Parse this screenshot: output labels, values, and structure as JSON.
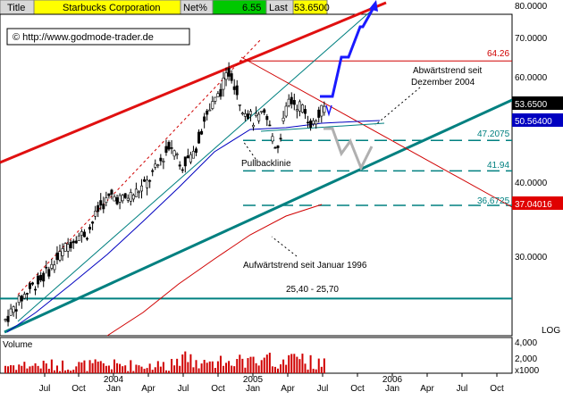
{
  "header": {
    "title_label": "Title",
    "company": "Starbucks Corporation",
    "net_label": "Net%",
    "net_value": "6.55",
    "last_label": "Last",
    "last_value": "53.6500"
  },
  "watermark": "© http://www.godmode-trader.de",
  "annotations": {
    "downtrend": [
      "Abwärtstrend seit",
      "Dezember 2004"
    ],
    "pullback": "Pullbacklinie",
    "uptrend": "Aufwärtstrend seit Januar 1996",
    "range": "25,40 - 25,70",
    "level_6426": "64.26",
    "level_47": "47.2075",
    "level_4194": "41.94",
    "level_3667": "36.6725"
  },
  "right_axis": {
    "ticks": [
      "80.0000",
      "70.0000",
      "60.0000",
      "40.0000",
      "30.0000"
    ],
    "boxes": {
      "last": "53.6500",
      "ma_blue": "50.56400",
      "ma_red": "37.04016"
    },
    "scale_label": "LOG"
  },
  "volume": {
    "label": "Volume",
    "ticks": [
      "4,000",
      "2,000",
      "x1000"
    ]
  },
  "x_axis": {
    "labels": [
      "Jul",
      "Oct",
      "Jan",
      "Apr",
      "Jul",
      "Oct",
      "Jan",
      "Apr",
      "Jul",
      "Oct",
      "Jan",
      "Apr",
      "Jul",
      "Oct"
    ],
    "years": [
      "2004",
      "2005",
      "2006"
    ]
  },
  "colors": {
    "trend_red": "#e01010",
    "trend_green": "#008080",
    "ma_blue": "#0000c0",
    "ma_red": "#d00000",
    "forecast_blue": "#1a1aff",
    "forecast_grey": "#b0b0b0",
    "header_green": "#00c800",
    "header_yellow": "#ffff00"
  },
  "chart_data": {
    "type": "candlestick",
    "scale": "log",
    "ylim": [
      22,
      82
    ],
    "x_start": "2003-05",
    "x_end": "2006-11",
    "price_path": [
      [
        "2003-05",
        23.5
      ],
      [
        "2003-06",
        25.0
      ],
      [
        "2003-07",
        26.5
      ],
      [
        "2003-08",
        27.5
      ],
      [
        "2003-09",
        29.0
      ],
      [
        "2003-10",
        31.0
      ],
      [
        "2003-11",
        32.5
      ],
      [
        "2003-12",
        33.0
      ],
      [
        "2004-01",
        36.5
      ],
      [
        "2004-02",
        38.0
      ],
      [
        "2004-03",
        37.5
      ],
      [
        "2004-04",
        38.5
      ],
      [
        "2004-05",
        40.0
      ],
      [
        "2004-06",
        43.0
      ],
      [
        "2004-07",
        46.5
      ],
      [
        "2004-08",
        43.0
      ],
      [
        "2004-09",
        45.0
      ],
      [
        "2004-10",
        52.0
      ],
      [
        "2004-11",
        56.0
      ],
      [
        "2004-12",
        62.0
      ],
      [
        "2005-01",
        54.0
      ],
      [
        "2005-02",
        51.0
      ],
      [
        "2005-03",
        52.0
      ],
      [
        "2005-04",
        45.5
      ],
      [
        "2005-05",
        55.0
      ],
      [
        "2005-06",
        54.0
      ],
      [
        "2005-07",
        50.0
      ],
      [
        "2005-07b",
        53.65
      ]
    ],
    "levels": [
      64.26,
      47.2075,
      41.94,
      36.6725,
      25.55
    ],
    "last": 53.65,
    "ma_blue_last": 50.564,
    "ma_red_last": 37.04016,
    "volume_axis": [
      0,
      4000
    ]
  }
}
